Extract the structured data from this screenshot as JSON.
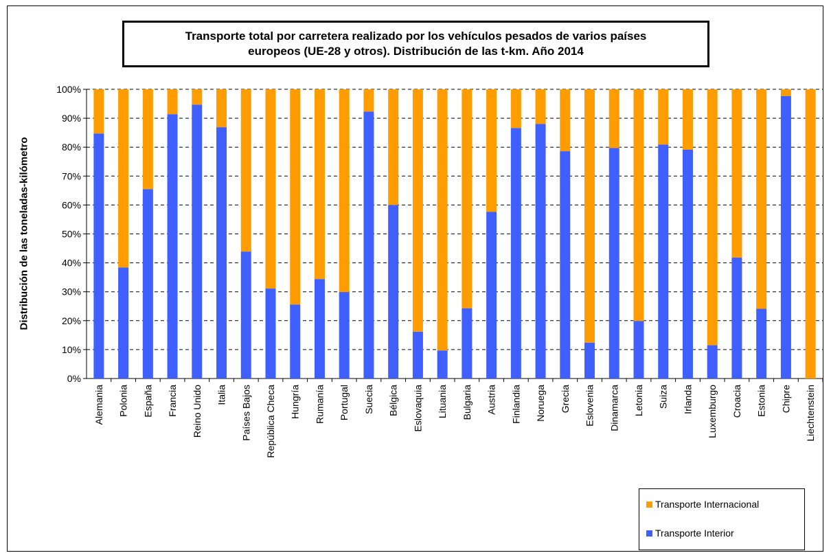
{
  "chart_data": {
    "type": "bar",
    "stacked": true,
    "percent": true,
    "title_lines": [
      "Transporte total por carretera realizado por los vehículos pesados de varios países",
      "europeos (UE-28 y otros). Distribución de las t-km. Año 2014"
    ],
    "xlabel": "",
    "ylabel": "Distribución de las toneladas-kilómetro",
    "ylim": [
      0,
      100
    ],
    "yticks": [
      "0%",
      "10%",
      "20%",
      "30%",
      "40%",
      "50%",
      "60%",
      "70%",
      "80%",
      "90%",
      "100%"
    ],
    "grid": "horizontal dashed",
    "legend_position": "bottom-right",
    "categories": [
      "Alemania",
      "Polonia",
      "España",
      "Francia",
      "Reino Unido",
      "Italia",
      "Países Bajos",
      "República Checa",
      "Hungría",
      "Rumanía",
      "Portugal",
      "Suecia",
      "Bélgica",
      "Eslovaquia",
      "Lituania",
      "Bulgaria",
      "Austria",
      "Finlandia",
      "Noruega",
      "Grecia",
      "Eslovenia",
      "Dinamarca",
      "Letonia",
      "Suiza",
      "Irlanda",
      "Luxemburgo",
      "Croacia",
      "Estonia",
      "Chipre",
      "Liechtenstein"
    ],
    "series": [
      {
        "name": "Transporte Interior",
        "color": "#3f5fff",
        "values": [
          84.7,
          38.4,
          65.5,
          91.4,
          94.7,
          86.9,
          43.9,
          31.1,
          25.6,
          34.4,
          29.9,
          92.3,
          60.0,
          16.2,
          9.7,
          24.3,
          57.6,
          86.6,
          88.0,
          78.6,
          12.4,
          79.7,
          19.9,
          80.9,
          79.1,
          11.5,
          41.8,
          24.1,
          97.7,
          0.0
        ]
      },
      {
        "name": "Transporte Internacional",
        "color": "#ff9c00",
        "values": [
          15.3,
          61.6,
          34.5,
          8.6,
          5.3,
          13.1,
          56.1,
          68.9,
          74.4,
          65.6,
          70.1,
          7.7,
          40.0,
          83.8,
          90.3,
          75.7,
          42.4,
          13.4,
          12.0,
          21.4,
          87.6,
          20.3,
          80.1,
          19.1,
          20.9,
          88.5,
          58.2,
          75.9,
          2.3,
          100.0
        ]
      }
    ]
  },
  "legend": {
    "items": [
      {
        "label": "Transporte Internacional",
        "color": "#ff9c00"
      },
      {
        "label": "Transporte Interior",
        "color": "#3f5fff"
      }
    ]
  }
}
